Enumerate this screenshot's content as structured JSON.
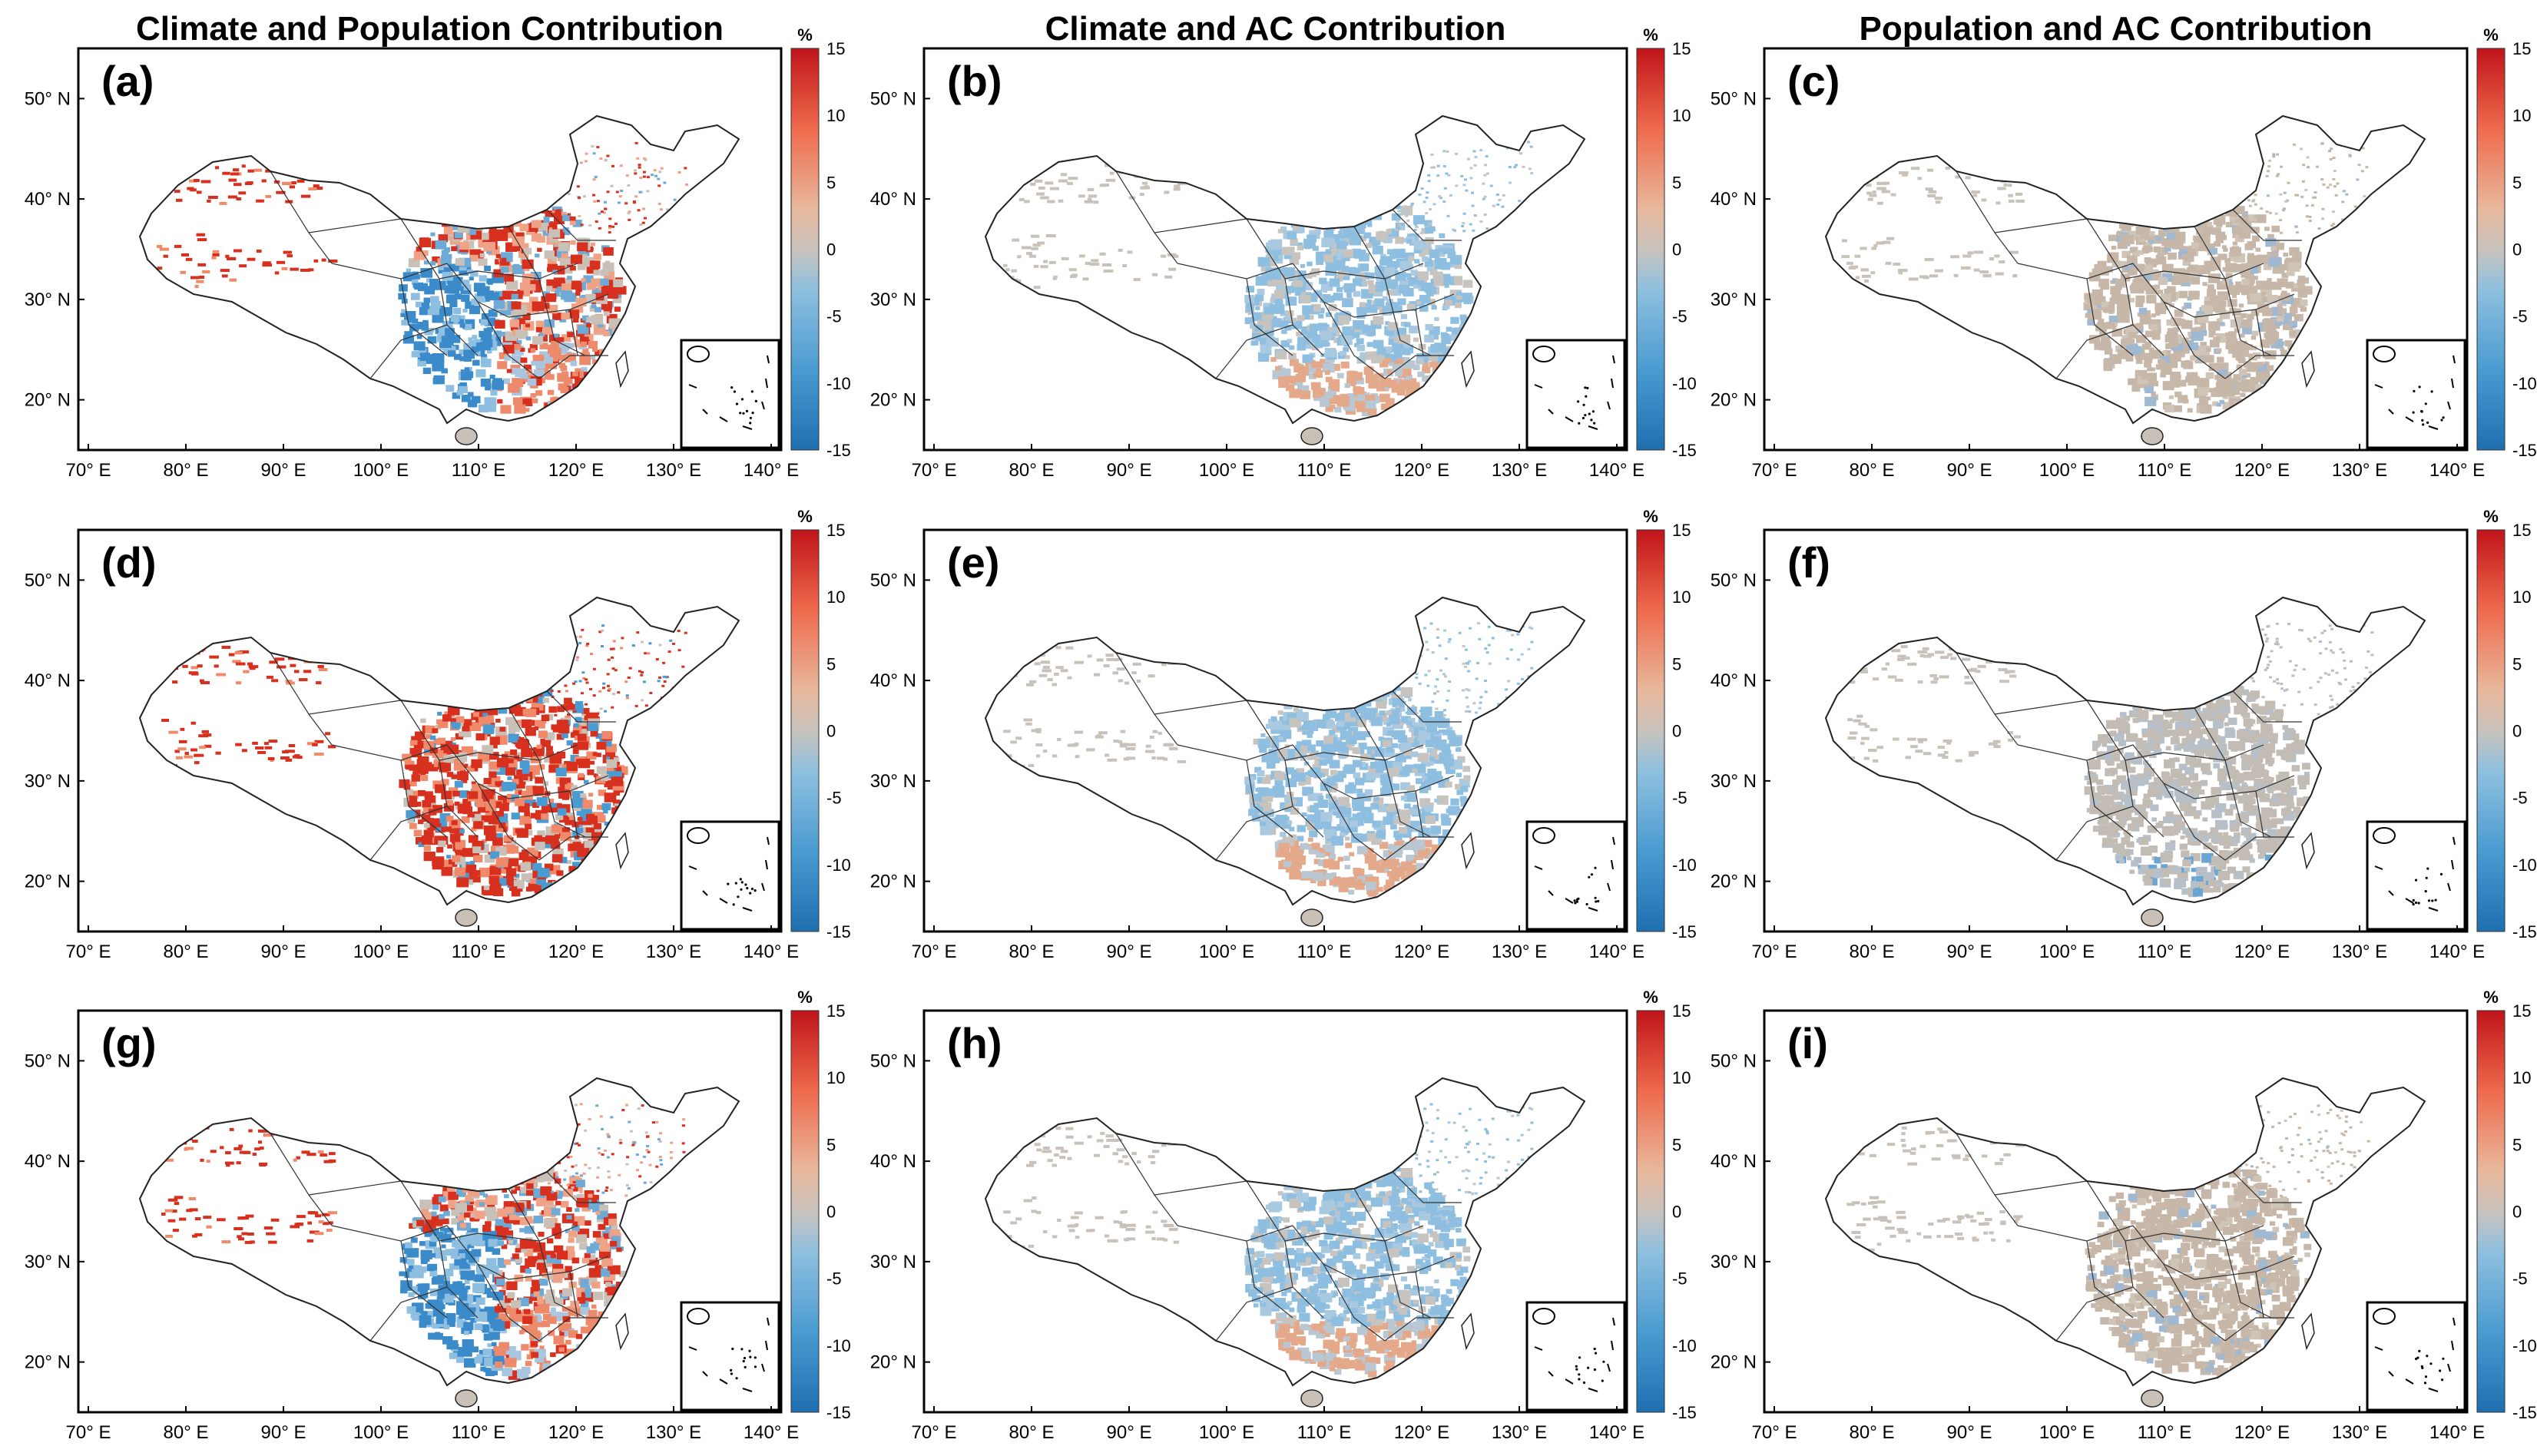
{
  "figure": {
    "column_titles": [
      "Climate and Population Contribution",
      "Climate and AC Contribution",
      "Population and AC Contribution"
    ],
    "panels": [
      {
        "label": "(a)",
        "scheme": "mixed_west"
      },
      {
        "label": "(b)",
        "scheme": "blue_north_orange_south"
      },
      {
        "label": "(c)",
        "scheme": "tan"
      },
      {
        "label": "(d)",
        "scheme": "red"
      },
      {
        "label": "(e)",
        "scheme": "blue_north_orange_south"
      },
      {
        "label": "(f)",
        "scheme": "tan_grey"
      },
      {
        "label": "(g)",
        "scheme": "mixed_west"
      },
      {
        "label": "(h)",
        "scheme": "blue_north_orange_south"
      },
      {
        "label": "(i)",
        "scheme": "tan"
      }
    ],
    "x_tick_labels": [
      "70° E",
      "80° E",
      "90° E",
      "100° E",
      "110° E",
      "120° E",
      "130° E",
      "140° E"
    ],
    "y_tick_labels": [
      "20° N",
      "30° N",
      "40° N",
      "50° N"
    ],
    "lon_range": [
      70,
      140
    ],
    "lat_range": [
      15,
      55
    ],
    "colorbar": {
      "unit": "%",
      "ticks": [
        "15",
        "10",
        "5",
        "0",
        "-5",
        "-10",
        "-15"
      ],
      "range": [
        -15,
        15
      ],
      "colors": {
        "high": "#d7191c",
        "mid": "#c8bfb6",
        "low": "#2c7bb6"
      }
    }
  }
}
